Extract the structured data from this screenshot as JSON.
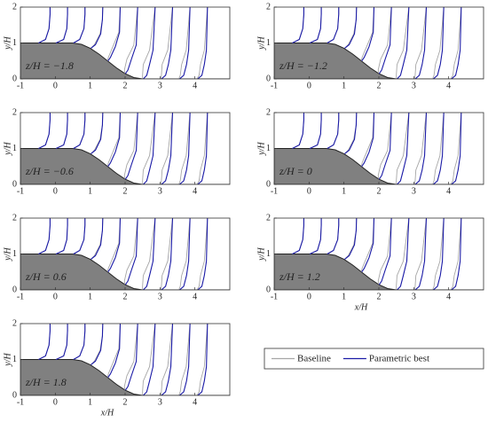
{
  "chart_data": {
    "type": "line",
    "xlabel": "x/H",
    "ylabel": "y/H",
    "xlim": [
      -1,
      5
    ],
    "ylim": [
      0,
      2
    ],
    "xticks": [
      -1,
      0,
      1,
      2,
      3,
      4
    ],
    "yticks": [
      0,
      1,
      2
    ],
    "hill_color": "#808080",
    "hill": {
      "x": [
        -1,
        -0.5,
        0,
        0.5,
        0.75,
        1,
        1.25,
        1.5,
        1.75,
        2,
        2.25,
        2.5,
        5
      ],
      "y": [
        1,
        1,
        1,
        1,
        0.962,
        0.854,
        0.691,
        0.5,
        0.309,
        0.146,
        0.038,
        0,
        0
      ]
    },
    "panels": [
      {
        "annotation": "z/H = −1.8",
        "show_xlabel": false
      },
      {
        "annotation": "z/H = −1.2",
        "show_xlabel": false
      },
      {
        "annotation": "z/H = −0.6",
        "show_xlabel": false
      },
      {
        "annotation": "z/H = 0",
        "show_xlabel": false
      },
      {
        "annotation": "z/H = 0.6",
        "show_xlabel": false
      },
      {
        "annotation": "z/H = 1.2",
        "show_xlabel": true
      },
      {
        "annotation": "z/H = 1.8",
        "show_xlabel": true
      }
    ],
    "series": [
      {
        "name": "Baseline",
        "color": "#a6a6a6",
        "x": [
          -0.48,
          -0.28,
          -0.18,
          -0.15,
          -0.15,
          null,
          0.02,
          0.24,
          0.33,
          0.35,
          0.35,
          null,
          0.52,
          0.7,
          0.82,
          0.85,
          0.85,
          null,
          1.02,
          1.12,
          1.28,
          1.35,
          1.36,
          null,
          1.5,
          1.52,
          1.65,
          1.82,
          1.86,
          null,
          2,
          1.98,
          2.05,
          2.25,
          2.36,
          null,
          2.5,
          2.5,
          2.52,
          2.7,
          2.86,
          null,
          3.02,
          3.04,
          3.06,
          3.22,
          3.36,
          null,
          3.54,
          3.58,
          3.62,
          3.75,
          3.86,
          null,
          4.06,
          4.12,
          4.16,
          4.27,
          4.36
        ],
        "values": [
          1,
          1.1,
          1.4,
          1.8,
          2,
          null,
          1,
          1.1,
          1.4,
          1.8,
          2,
          null,
          1,
          1.1,
          1.4,
          1.8,
          2,
          null,
          0.854,
          0.954,
          1.254,
          1.654,
          2,
          null,
          0.5,
          0.6,
          0.9,
          1.3,
          2,
          null,
          0.146,
          0.246,
          0.546,
          0.946,
          2,
          null,
          0,
          0.1,
          0.4,
          0.8,
          2,
          null,
          0,
          0.1,
          0.4,
          0.8,
          2,
          null,
          0,
          0.1,
          0.4,
          0.8,
          2,
          null,
          0,
          0.1,
          0.4,
          0.8,
          2
        ]
      },
      {
        "name": "Parametric best",
        "color": "#1a1aa6",
        "x": [
          -0.48,
          -0.28,
          -0.18,
          -0.15,
          -0.15,
          null,
          0.02,
          0.24,
          0.33,
          0.35,
          0.35,
          null,
          0.52,
          0.7,
          0.82,
          0.85,
          0.85,
          null,
          1.02,
          1.15,
          1.3,
          1.35,
          1.36,
          null,
          1.51,
          1.58,
          1.72,
          1.84,
          1.86,
          null,
          2.01,
          2.08,
          2.18,
          2.32,
          2.36,
          null,
          2.52,
          2.62,
          2.7,
          2.8,
          2.86,
          null,
          3.04,
          3.16,
          3.24,
          3.31,
          3.36,
          null,
          3.56,
          3.68,
          3.76,
          3.82,
          3.86,
          null,
          4.08,
          4.2,
          4.27,
          4.33,
          4.36
        ],
        "values": [
          1,
          1.1,
          1.4,
          1.8,
          2,
          null,
          1,
          1.1,
          1.4,
          1.8,
          2,
          null,
          1,
          1.1,
          1.4,
          1.8,
          2,
          null,
          0.854,
          0.954,
          1.254,
          1.654,
          2,
          null,
          0.5,
          0.6,
          0.9,
          1.3,
          2,
          null,
          0.146,
          0.246,
          0.546,
          0.946,
          2,
          null,
          0,
          0.1,
          0.4,
          0.8,
          2,
          null,
          0,
          0.1,
          0.4,
          0.8,
          2,
          null,
          0,
          0.1,
          0.4,
          0.8,
          2,
          null,
          0,
          0.1,
          0.4,
          0.8,
          2
        ]
      }
    ]
  }
}
